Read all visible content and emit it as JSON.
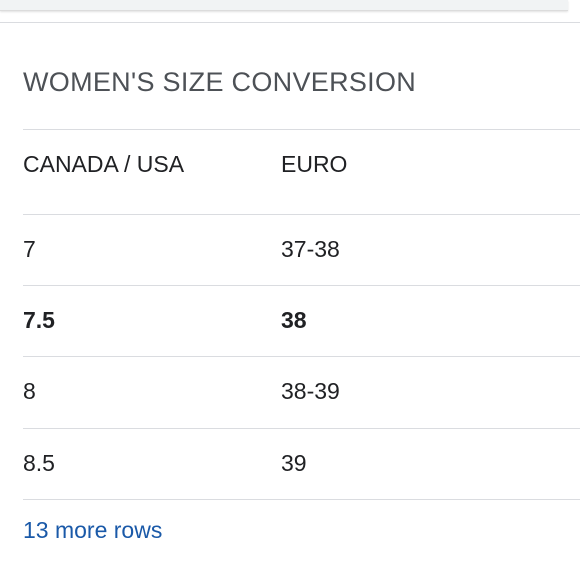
{
  "card": {
    "title": "WOMEN'S SIZE CONVERSION"
  },
  "table": {
    "headers": [
      "CANADA / USA",
      "EURO"
    ],
    "rows": [
      {
        "canada_usa": "7",
        "euro": "37-38",
        "bold": false
      },
      {
        "canada_usa": "7.5",
        "euro": "38",
        "bold": true
      },
      {
        "canada_usa": "8",
        "euro": "38-39",
        "bold": false
      },
      {
        "canada_usa": "8.5",
        "euro": "39",
        "bold": false
      }
    ]
  },
  "more_rows": {
    "label": "13 more rows"
  },
  "colors": {
    "title": "#4d5156",
    "text": "#202124",
    "link": "#1a59a8",
    "divider": "#dadce0"
  }
}
